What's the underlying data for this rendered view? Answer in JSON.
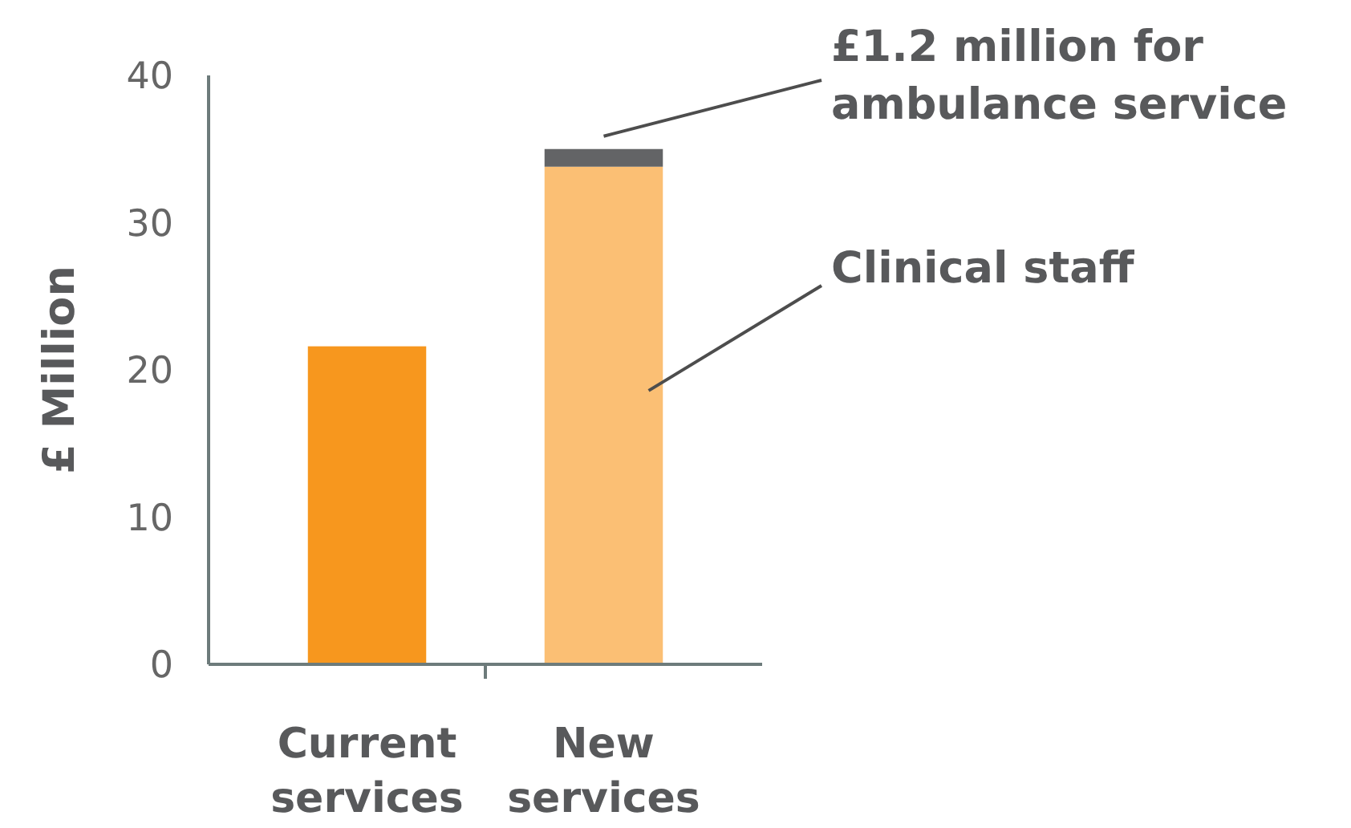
{
  "chart_data": {
    "type": "bar",
    "stacked": true,
    "ylabel": "£ Million",
    "categories": [
      "Current services",
      "New services"
    ],
    "series": [
      {
        "name": "Clinical staff",
        "colors": [
          "#f7971e",
          "#fbbf74"
        ],
        "values": [
          21.6,
          33.8
        ]
      },
      {
        "name": "£1.2 million for ambulance service",
        "color": "#636466",
        "values": [
          null,
          1.2
        ]
      }
    ],
    "ylim": [
      0,
      40
    ],
    "yticks": [
      0,
      10,
      20,
      30,
      40
    ],
    "grid": false
  }
}
